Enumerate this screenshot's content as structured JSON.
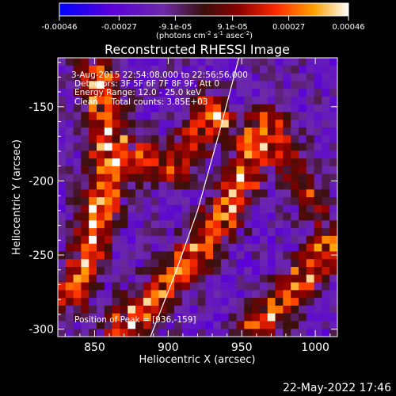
{
  "chart_data": {
    "type": "heatmap",
    "title": "Reconstructed RHESSI Image",
    "xlabel": "Heliocentric X (arcsec)",
    "ylabel": "Heliocentric Y (arcsec)",
    "xlim": [
      825,
      1015
    ],
    "ylim": [
      -305,
      -117
    ],
    "x_ticks": [
      850,
      900,
      950,
      1000
    ],
    "y_ticks": [
      -150,
      -200,
      -250,
      -300
    ],
    "colorbar": {
      "ticks": [
        -0.00046,
        -0.00027,
        -9.1e-05,
        9.1e-05,
        0.00027,
        0.00046
      ],
      "tick_labels": [
        "-0.00046",
        "-0.00027",
        "-9.1e-05",
        "9.1e-05",
        "0.00027",
        "0.00046"
      ],
      "range": [
        -0.00046,
        0.00046
      ],
      "unit_label": "(photons cm",
      "unit_exp1": "-2",
      "unit_mid": " s",
      "unit_exp2": "-1",
      "unit_end": " asec",
      "unit_exp3": "-2",
      "unit_close": ")"
    },
    "annotations": {
      "time_range": "3-Aug-2015 22:54:08.000 to 22:56:56.000",
      "detectors": "Detectors: 3F 5F 6F 7F 8F 9F, Att 0",
      "energy": "Energy Range: 12.0 - 25.0 keV",
      "clean": "Clean     Total counts: 3.85E+03",
      "peak": "Position of Peak = [936,-159]"
    },
    "peak_position": [
      936,
      -159
    ],
    "limb_curve": [
      [
        888,
        -305
      ],
      [
        905,
        -262
      ],
      [
        920,
        -220
      ],
      [
        934,
        -170
      ],
      [
        942,
        -140
      ],
      [
        948,
        -117
      ]
    ],
    "emission_ridges": [
      {
        "points": [
          [
            852,
            -130
          ],
          [
            860,
            -160
          ],
          [
            858,
            -195
          ],
          [
            852,
            -225
          ],
          [
            843,
            -255
          ],
          [
            835,
            -275
          ]
        ],
        "strength": 0.0004
      },
      {
        "points": [
          [
            870,
            -298
          ],
          [
            895,
            -275
          ],
          [
            920,
            -248
          ],
          [
            940,
            -220
          ],
          [
            952,
            -195
          ],
          [
            958,
            -175
          ]
        ],
        "strength": 0.00038
      },
      {
        "points": [
          [
            955,
            -305
          ],
          [
            975,
            -285
          ],
          [
            993,
            -265
          ],
          [
            1008,
            -245
          ]
        ],
        "strength": 0.00035
      },
      {
        "points": [
          [
            880,
            -185
          ],
          [
            905,
            -190
          ],
          [
            918,
            -170
          ],
          [
            925,
            -150
          ]
        ],
        "strength": 0.0003
      },
      {
        "points": [
          [
            968,
            -160
          ],
          [
            985,
            -190
          ],
          [
            998,
            -215
          ]
        ],
        "strength": 0.00025
      }
    ],
    "date_stamp": "22-May-2022 17:46"
  }
}
